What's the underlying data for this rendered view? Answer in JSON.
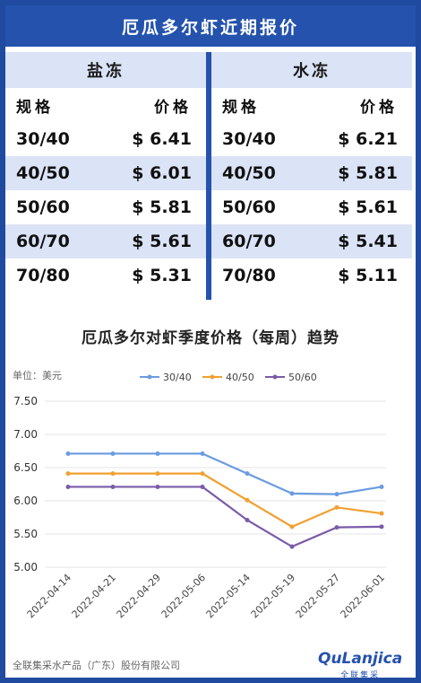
{
  "title": "厄瓜多尔虾近期报价",
  "table": {
    "sections": [
      {
        "name": "盐冻",
        "headers": [
          "规格",
          "价格"
        ],
        "rows": [
          {
            "spec": "30/40",
            "price": "$ 6.41"
          },
          {
            "spec": "40/50",
            "price": "$ 6.01"
          },
          {
            "spec": "50/60",
            "price": "$ 5.81"
          },
          {
            "spec": "60/70",
            "price": "$ 5.61"
          },
          {
            "spec": "70/80",
            "price": "$ 5.31"
          }
        ]
      },
      {
        "name": "水冻",
        "headers": [
          "规格",
          "价格"
        ],
        "rows": [
          {
            "spec": "30/40",
            "price": "$ 6.21"
          },
          {
            "spec": "40/50",
            "price": "$ 5.81"
          },
          {
            "spec": "50/60",
            "price": "$ 5.61"
          },
          {
            "spec": "60/70",
            "price": "$ 5.41"
          },
          {
            "spec": "70/80",
            "price": "$ 5.11"
          }
        ]
      }
    ]
  },
  "chart_data": {
    "type": "line",
    "title": "厄瓜多尔对虾季度价格（每周）趋势",
    "unit_label": "单位：美元",
    "categories": [
      "2022-04-14",
      "2022-04-21",
      "2022-04-29",
      "2022-05-06",
      "2022-05-14",
      "2022-05-19",
      "2022-05-27",
      "2022-06-01"
    ],
    "ylim": [
      5.0,
      7.5
    ],
    "yticks": [
      "7.50",
      "7.00",
      "6.50",
      "6.00",
      "5.50",
      "5.00"
    ],
    "grid": true,
    "legend_position": "top",
    "series": [
      {
        "name": "30/40",
        "color": "#6a9be0",
        "values": [
          6.71,
          6.71,
          6.71,
          6.71,
          6.41,
          6.11,
          6.1,
          6.21
        ]
      },
      {
        "name": "40/50",
        "color": "#f0a030",
        "values": [
          6.41,
          6.41,
          6.41,
          6.41,
          6.01,
          5.61,
          5.9,
          5.81
        ]
      },
      {
        "name": "50/60",
        "color": "#7a5ba8",
        "values": [
          6.21,
          6.21,
          6.21,
          6.21,
          5.71,
          5.31,
          5.6,
          5.61
        ]
      }
    ]
  },
  "footer": {
    "company": "全联集采水产品（广东）股份有限公司",
    "brand_name": "QuLanjica",
    "brand_sub": "全联集采"
  },
  "colors": {
    "accent": "#2452ad",
    "shade": "#dbe3f6"
  }
}
